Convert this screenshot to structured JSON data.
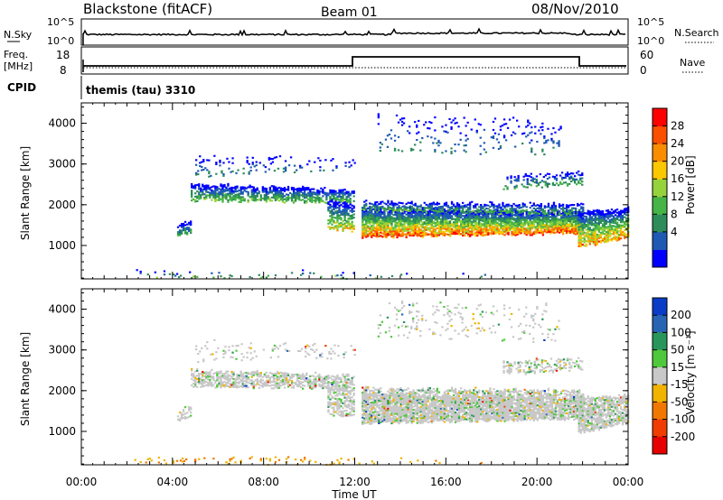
{
  "header": {
    "station": "Blackstone (fitACF)",
    "beam": "Beam 01",
    "date": "08/Nov/2010"
  },
  "panels": {
    "nsky": {
      "left_label": "N.Sky",
      "left_ticks": [
        "10^5",
        "10^0"
      ],
      "right_label": "N.Search",
      "right_ticks": [
        "10^5",
        "10^0"
      ]
    },
    "freq": {
      "left_label_1": "Freq.",
      "left_label_2": "[MHz]",
      "left_ticks": [
        "18",
        "8"
      ],
      "right_label": "Nave",
      "right_ticks": [
        "60",
        "0"
      ]
    },
    "cpid": {
      "label": "CPID",
      "value": "themis (tau) 3310"
    }
  },
  "colorbars": {
    "power": {
      "label": "Power [dB]",
      "ticks": [
        "28",
        "24",
        "20",
        "16",
        "12",
        "8",
        "4"
      ],
      "colors": [
        "#0000ff",
        "#1e5ab4",
        "#2d8c5a",
        "#46b446",
        "#96d23c",
        "#fac800",
        "#fa8c00",
        "#fa5000",
        "#ff0000"
      ]
    },
    "velocity": {
      "label": "Velocity [m s⁻¹]",
      "ticks": [
        "200",
        "100",
        "50",
        "15",
        "-15",
        "-50",
        "-100",
        "-200"
      ],
      "colors": [
        "#0a3cc8",
        "#2864b4",
        "#28965a",
        "#50c83c",
        "#c8c8c8",
        "#f0b400",
        "#f07800",
        "#f03c00",
        "#e60000"
      ]
    }
  },
  "chart_data": [
    {
      "type": "heatmap",
      "name": "Power",
      "ylabel": "Slant Range [km]",
      "yticks": [
        "1000",
        "2000",
        "3000",
        "4000"
      ],
      "ylim": [
        180,
        4500
      ],
      "xlim": [
        0,
        24
      ],
      "regions": [
        {
          "t": [
            4.2,
            4.8
          ],
          "lower": [
            1250,
            1300
          ],
          "upper": [
            1500,
            1600
          ],
          "dens": 0.6,
          "p": [
            0.0,
            0.4,
            0.0
          ]
        },
        {
          "t": [
            4.8,
            12.0
          ],
          "lower": [
            2100,
            2050
          ],
          "upper": [
            2500,
            2350
          ],
          "dens": 0.7,
          "p": [
            0.0,
            0.5,
            0.0
          ]
        },
        {
          "t": [
            10.8,
            12.0
          ],
          "lower": [
            1400,
            1350
          ],
          "upper": [
            2100,
            2000
          ],
          "dens": 0.65,
          "p": [
            0.1,
            0.7,
            0.3
          ]
        },
        {
          "t": [
            12.3,
            22.0
          ],
          "lower": [
            1200,
            1300
          ],
          "upper": [
            1900,
            1800
          ],
          "dens": 0.9,
          "p": [
            0.1,
            0.95,
            0.35
          ]
        },
        {
          "t": [
            12.3,
            22.0
          ],
          "lower": [
            1850,
            1750
          ],
          "upper": [
            2050,
            2000
          ],
          "dens": 0.6,
          "p": [
            0.0,
            0.45,
            0.0
          ]
        },
        {
          "t": [
            21.8,
            24.0
          ],
          "lower": [
            950,
            1200
          ],
          "upper": [
            1800,
            1900
          ],
          "dens": 0.8,
          "p": [
            0.1,
            0.85,
            0.3
          ]
        },
        {
          "t": [
            13.0,
            21.0
          ],
          "lower": [
            3300,
            3200
          ],
          "upper": [
            4200,
            4100
          ],
          "dens": 0.08,
          "p": [
            0.0,
            0.3,
            0.0
          ]
        },
        {
          "t": [
            18.5,
            22.0
          ],
          "lower": [
            2400,
            2500
          ],
          "upper": [
            2700,
            2800
          ],
          "dens": 0.35,
          "p": [
            0.0,
            0.4,
            0.0
          ]
        },
        {
          "t": [
            5.0,
            12.0
          ],
          "lower": [
            2700,
            2800
          ],
          "upper": [
            3200,
            3100
          ],
          "dens": 0.1,
          "p": [
            0.0,
            0.3,
            0.0
          ]
        },
        {
          "t": [
            2.0,
            12.0
          ],
          "lower": [
            200,
            200
          ],
          "upper": [
            350,
            350
          ],
          "dens": 0.12,
          "p": [
            0.0,
            0.5,
            0.0
          ]
        },
        {
          "t": [
            12.0,
            18.0
          ],
          "lower": [
            200,
            200
          ],
          "upper": [
            300,
            300
          ],
          "dens": 0.04,
          "p": [
            0.0,
            0.5,
            0.0
          ]
        }
      ]
    },
    {
      "type": "heatmap",
      "name": "Velocity",
      "ylabel": "Slant Range [km]",
      "yticks": [
        "1000",
        "2000",
        "3000",
        "4000"
      ],
      "ylim": [
        180,
        4500
      ],
      "xlim": [
        0,
        24
      ],
      "regions": [
        {
          "t": [
            4.2,
            4.8
          ],
          "lower": [
            1250,
            1300
          ],
          "upper": [
            1500,
            1600
          ],
          "dens": 0.6,
          "p": [
            0.0,
            0.4,
            0.0
          ]
        },
        {
          "t": [
            4.8,
            12.0
          ],
          "lower": [
            2100,
            2050
          ],
          "upper": [
            2500,
            2350
          ],
          "dens": 0.7,
          "p": [
            0.0,
            0.5,
            0.0
          ]
        },
        {
          "t": [
            10.8,
            12.0
          ],
          "lower": [
            1400,
            1350
          ],
          "upper": [
            2100,
            2000
          ],
          "dens": 0.65,
          "p": [
            0.1,
            0.7,
            0.3
          ]
        },
        {
          "t": [
            12.3,
            22.0
          ],
          "lower": [
            1200,
            1300
          ],
          "upper": [
            1900,
            1800
          ],
          "dens": 0.9,
          "p": [
            0.1,
            0.95,
            0.35
          ]
        },
        {
          "t": [
            12.3,
            22.0
          ],
          "lower": [
            1850,
            1750
          ],
          "upper": [
            2050,
            2000
          ],
          "dens": 0.6,
          "p": [
            0.0,
            0.45,
            0.0
          ]
        },
        {
          "t": [
            21.8,
            24.0
          ],
          "lower": [
            950,
            1200
          ],
          "upper": [
            1800,
            1900
          ],
          "dens": 0.8,
          "p": [
            0.1,
            0.85,
            0.3
          ]
        },
        {
          "t": [
            13.0,
            21.0
          ],
          "lower": [
            3300,
            3200
          ],
          "upper": [
            4200,
            4100
          ],
          "dens": 0.08,
          "p": [
            0.0,
            0.3,
            0.0
          ]
        },
        {
          "t": [
            18.5,
            22.0
          ],
          "lower": [
            2400,
            2500
          ],
          "upper": [
            2700,
            2800
          ],
          "dens": 0.35,
          "p": [
            0.0,
            0.4,
            0.0
          ]
        },
        {
          "t": [
            5.0,
            12.0
          ],
          "lower": [
            2700,
            2800
          ],
          "upper": [
            3200,
            3100
          ],
          "dens": 0.1,
          "p": [
            0.0,
            0.3,
            0.0
          ]
        },
        {
          "t": [
            2.0,
            12.0
          ],
          "lower": [
            200,
            200
          ],
          "upper": [
            350,
            350
          ],
          "dens": 0.12,
          "p": [
            0.0,
            0.5,
            0.0
          ]
        },
        {
          "t": [
            12.0,
            18.0
          ],
          "lower": [
            200,
            200
          ],
          "upper": [
            300,
            300
          ],
          "dens": 0.04,
          "p": [
            0.0,
            0.5,
            0.0
          ]
        }
      ]
    }
  ],
  "xaxis": {
    "label": "Time UT",
    "ticks": [
      "00:00",
      "04:00",
      "08:00",
      "12:00",
      "16:00",
      "20:00",
      "00:00"
    ]
  }
}
